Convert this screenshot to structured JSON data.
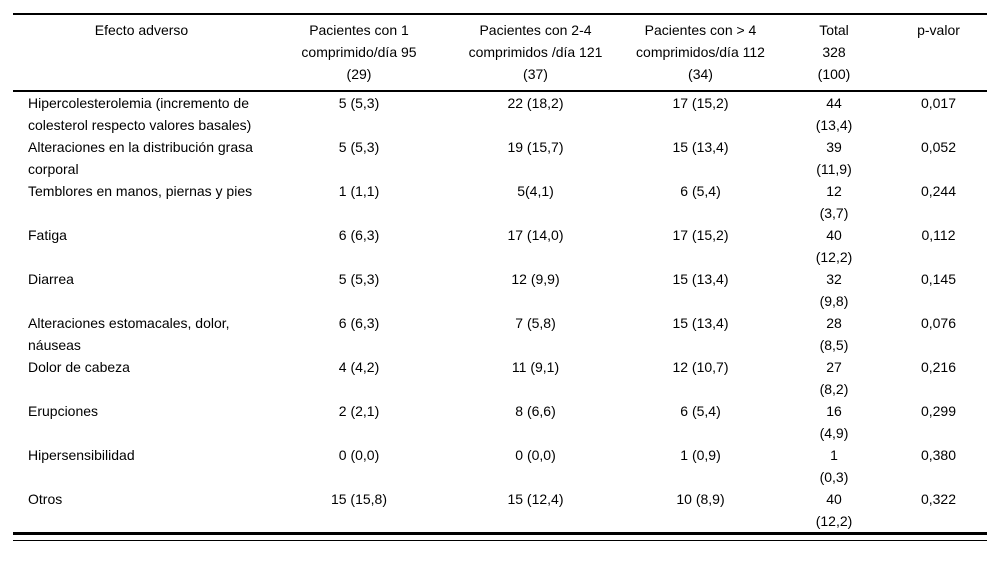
{
  "table": {
    "columns": [
      {
        "id": "effect",
        "label": "Efecto adverso"
      },
      {
        "id": "col1",
        "label": "Pacientes con 1\ncomprimido/día 95\n(29)"
      },
      {
        "id": "col2",
        "label": "Pacientes con 2-4\ncomprimidos /día 121\n(37)"
      },
      {
        "id": "col3",
        "label": "Pacientes con > 4\ncomprimidos/día 112\n(34)"
      },
      {
        "id": "total",
        "label": "Total\n328\n(100)"
      },
      {
        "id": "pvalue",
        "label": "p-valor"
      }
    ],
    "rows": [
      {
        "effect": "Hipercolesterolemia (incremento de colesterol respecto valores basales)",
        "col1": "5 (5,3)",
        "col2": "22 (18,2)",
        "col3": "17 (15,2)",
        "total": "44\n(13,4)",
        "pvalue": "0,017"
      },
      {
        "effect": "Alteraciones en la distribución grasa corporal",
        "col1": "5 (5,3)",
        "col2": "19 (15,7)",
        "col3": "15 (13,4)",
        "total": "39\n(11,9)",
        "pvalue": "0,052"
      },
      {
        "effect": "Temblores en manos, piernas y pies",
        "col1": "1 (1,1)",
        "col2": "5(4,1)",
        "col3": "6 (5,4)",
        "total": "12\n(3,7)",
        "pvalue": "0,244"
      },
      {
        "effect": "Fatiga",
        "col1": "6 (6,3)",
        "col2": "17 (14,0)",
        "col3": "17 (15,2)",
        "total": "40\n(12,2)",
        "pvalue": "0,112"
      },
      {
        "effect": "Diarrea",
        "col1": "5 (5,3)",
        "col2": "12 (9,9)",
        "col3": "15 (13,4)",
        "total": "32\n(9,8)",
        "pvalue": "0,145"
      },
      {
        "effect": "Alteraciones estomacales, dolor, náuseas",
        "col1": "6 (6,3)",
        "col2": "7 (5,8)",
        "col3": "15 (13,4)",
        "total": "28\n(8,5)",
        "pvalue": "0,076"
      },
      {
        "effect": "Dolor de cabeza",
        "col1": "4 (4,2)",
        "col2": "11 (9,1)",
        "col3": "12 (10,7)",
        "total": "27\n(8,2)",
        "pvalue": "0,216"
      },
      {
        "effect": "Erupciones",
        "col1": "2 (2,1)",
        "col2": "8 (6,6)",
        "col3": "6 (5,4)",
        "total": "16\n(4,9)",
        "pvalue": "0,299"
      },
      {
        "effect": "Hipersensibilidad",
        "col1": "0 (0,0)",
        "col2": "0 (0,0)",
        "col3": "1 (0,9)",
        "total": "1\n(0,3)",
        "pvalue": "0,380"
      },
      {
        "effect": "Otros",
        "col1": "15 (15,8)",
        "col2": "15 (12,4)",
        "col3": "10 (8,9)",
        "total": "40\n(12,2)",
        "pvalue": "0,322"
      }
    ]
  }
}
